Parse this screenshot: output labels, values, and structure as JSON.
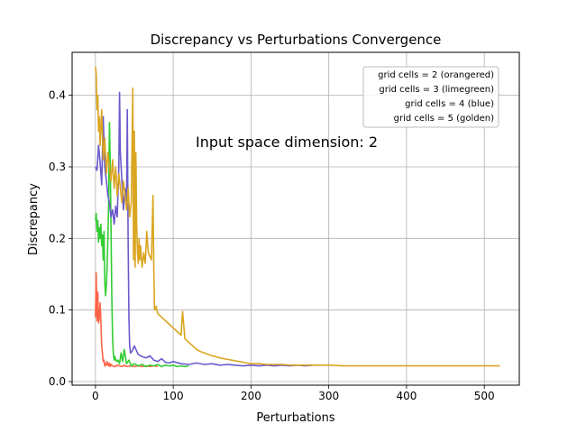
{
  "chart_data": {
    "type": "line",
    "title": "Discrepancy vs Perturbations Convergence",
    "xlabel": "Perturbations",
    "ylabel": "Discrepancy",
    "annotation": "Input space dimension: 2",
    "xlim": [
      -30,
      545
    ],
    "ylim": [
      -0.005,
      0.46
    ],
    "xticks": [
      0,
      100,
      200,
      300,
      400,
      500
    ],
    "yticks": [
      0.0,
      0.1,
      0.2,
      0.3,
      0.4
    ],
    "grid": true,
    "legend_position": "top-right",
    "series": [
      {
        "name": "grid cells  = 2 (orangered)",
        "color": "#ff6347",
        "x": [
          0,
          1,
          2,
          3,
          4,
          5,
          6,
          7,
          8,
          9,
          10,
          11,
          12,
          13,
          14,
          15,
          16,
          17,
          18,
          19,
          20,
          22,
          25,
          28,
          31,
          34,
          37,
          40,
          45,
          50,
          55,
          60,
          65,
          70,
          75,
          80
        ],
        "y": [
          0.09,
          0.152,
          0.085,
          0.125,
          0.082,
          0.09,
          0.11,
          0.085,
          0.05,
          0.04,
          0.028,
          0.03,
          0.022,
          0.025,
          0.023,
          0.028,
          0.024,
          0.022,
          0.026,
          0.021,
          0.024,
          0.022,
          0.021,
          0.023,
          0.022,
          0.021,
          0.023,
          0.021,
          0.022,
          0.021,
          0.022,
          0.021,
          0.022,
          0.021,
          0.022,
          0.021
        ]
      },
      {
        "name": "grid cells  = 3 (limegreen)",
        "color": "#32cd32",
        "x": [
          0,
          1,
          2,
          3,
          4,
          5,
          6,
          7,
          8,
          9,
          10,
          11,
          12,
          13,
          14,
          15,
          16,
          17,
          18,
          19,
          20,
          21,
          22,
          23,
          24,
          25,
          27,
          29,
          31,
          33,
          35,
          37,
          40,
          43,
          46,
          50,
          55,
          60,
          65,
          70,
          75,
          80,
          85,
          90,
          95,
          100,
          105,
          110,
          115,
          120
        ],
        "y": [
          0.225,
          0.235,
          0.21,
          0.225,
          0.195,
          0.215,
          0.2,
          0.22,
          0.19,
          0.205,
          0.17,
          0.21,
          0.14,
          0.12,
          0.135,
          0.16,
          0.2,
          0.25,
          0.362,
          0.3,
          0.22,
          0.12,
          0.06,
          0.04,
          0.03,
          0.035,
          0.028,
          0.03,
          0.025,
          0.04,
          0.028,
          0.045,
          0.025,
          0.03,
          0.022,
          0.025,
          0.022,
          0.024,
          0.021,
          0.023,
          0.022,
          0.024,
          0.021,
          0.023,
          0.022,
          0.023,
          0.021,
          0.022,
          0.021,
          0.022
        ]
      },
      {
        "name": "grid cells  = 4 (blue)",
        "color": "#6a5acd",
        "x": [
          0,
          2,
          4,
          6,
          8,
          10,
          12,
          14,
          16,
          18,
          20,
          22,
          24,
          26,
          28,
          30,
          31,
          32,
          34,
          36,
          38,
          40,
          41,
          42,
          43,
          44,
          45,
          47,
          50,
          55,
          60,
          65,
          70,
          75,
          80,
          85,
          90,
          95,
          100,
          110,
          120,
          130,
          140,
          150,
          160,
          170,
          180,
          190,
          200,
          210,
          220,
          230,
          240,
          250,
          260,
          270,
          280
        ],
        "y": [
          0.3,
          0.295,
          0.33,
          0.305,
          0.275,
          0.37,
          0.3,
          0.28,
          0.26,
          0.25,
          0.23,
          0.24,
          0.22,
          0.245,
          0.23,
          0.3,
          0.404,
          0.32,
          0.28,
          0.24,
          0.27,
          0.25,
          0.38,
          0.2,
          0.09,
          0.05,
          0.04,
          0.042,
          0.05,
          0.038,
          0.035,
          0.033,
          0.036,
          0.03,
          0.028,
          0.032,
          0.027,
          0.026,
          0.028,
          0.025,
          0.024,
          0.026,
          0.024,
          0.025,
          0.023,
          0.024,
          0.023,
          0.022,
          0.023,
          0.022,
          0.023,
          0.022,
          0.023,
          0.022,
          0.023,
          0.022,
          0.023
        ]
      },
      {
        "name": "grid cells  = 5 (golden)",
        "color": "#daa520",
        "x": [
          0,
          1,
          2,
          3,
          4,
          5,
          6,
          8,
          10,
          12,
          14,
          16,
          18,
          20,
          22,
          24,
          26,
          28,
          30,
          32,
          34,
          36,
          38,
          40,
          42,
          44,
          46,
          48,
          49,
          50,
          51,
          52,
          53,
          54,
          55,
          56,
          57,
          58,
          60,
          62,
          64,
          66,
          68,
          70,
          72,
          74,
          75,
          76,
          78,
          80,
          85,
          90,
          95,
          100,
          105,
          110,
          112,
          115,
          120,
          125,
          130,
          135,
          140,
          145,
          150,
          155,
          160,
          165,
          170,
          175,
          180,
          185,
          190,
          195,
          200,
          210,
          220,
          230,
          240,
          250,
          260,
          270,
          280,
          290,
          300,
          320,
          340,
          360,
          380,
          400,
          420,
          440,
          460,
          480,
          500,
          520
        ],
        "y": [
          0.44,
          0.43,
          0.38,
          0.4,
          0.35,
          0.37,
          0.33,
          0.38,
          0.31,
          0.34,
          0.29,
          0.32,
          0.3,
          0.28,
          0.31,
          0.27,
          0.3,
          0.26,
          0.29,
          0.27,
          0.25,
          0.28,
          0.26,
          0.24,
          0.27,
          0.23,
          0.25,
          0.41,
          0.17,
          0.35,
          0.16,
          0.32,
          0.22,
          0.18,
          0.165,
          0.2,
          0.17,
          0.19,
          0.16,
          0.18,
          0.165,
          0.21,
          0.18,
          0.175,
          0.17,
          0.26,
          0.16,
          0.1,
          0.105,
          0.095,
          0.09,
          0.085,
          0.08,
          0.075,
          0.07,
          0.065,
          0.098,
          0.06,
          0.055,
          0.05,
          0.045,
          0.042,
          0.04,
          0.038,
          0.036,
          0.035,
          0.033,
          0.032,
          0.031,
          0.03,
          0.029,
          0.028,
          0.027,
          0.026,
          0.025,
          0.025,
          0.024,
          0.024,
          0.024,
          0.023,
          0.023,
          0.023,
          0.023,
          0.023,
          0.023,
          0.022,
          0.022,
          0.022,
          0.022,
          0.022,
          0.022,
          0.022,
          0.022,
          0.022,
          0.022,
          0.022
        ]
      }
    ]
  }
}
